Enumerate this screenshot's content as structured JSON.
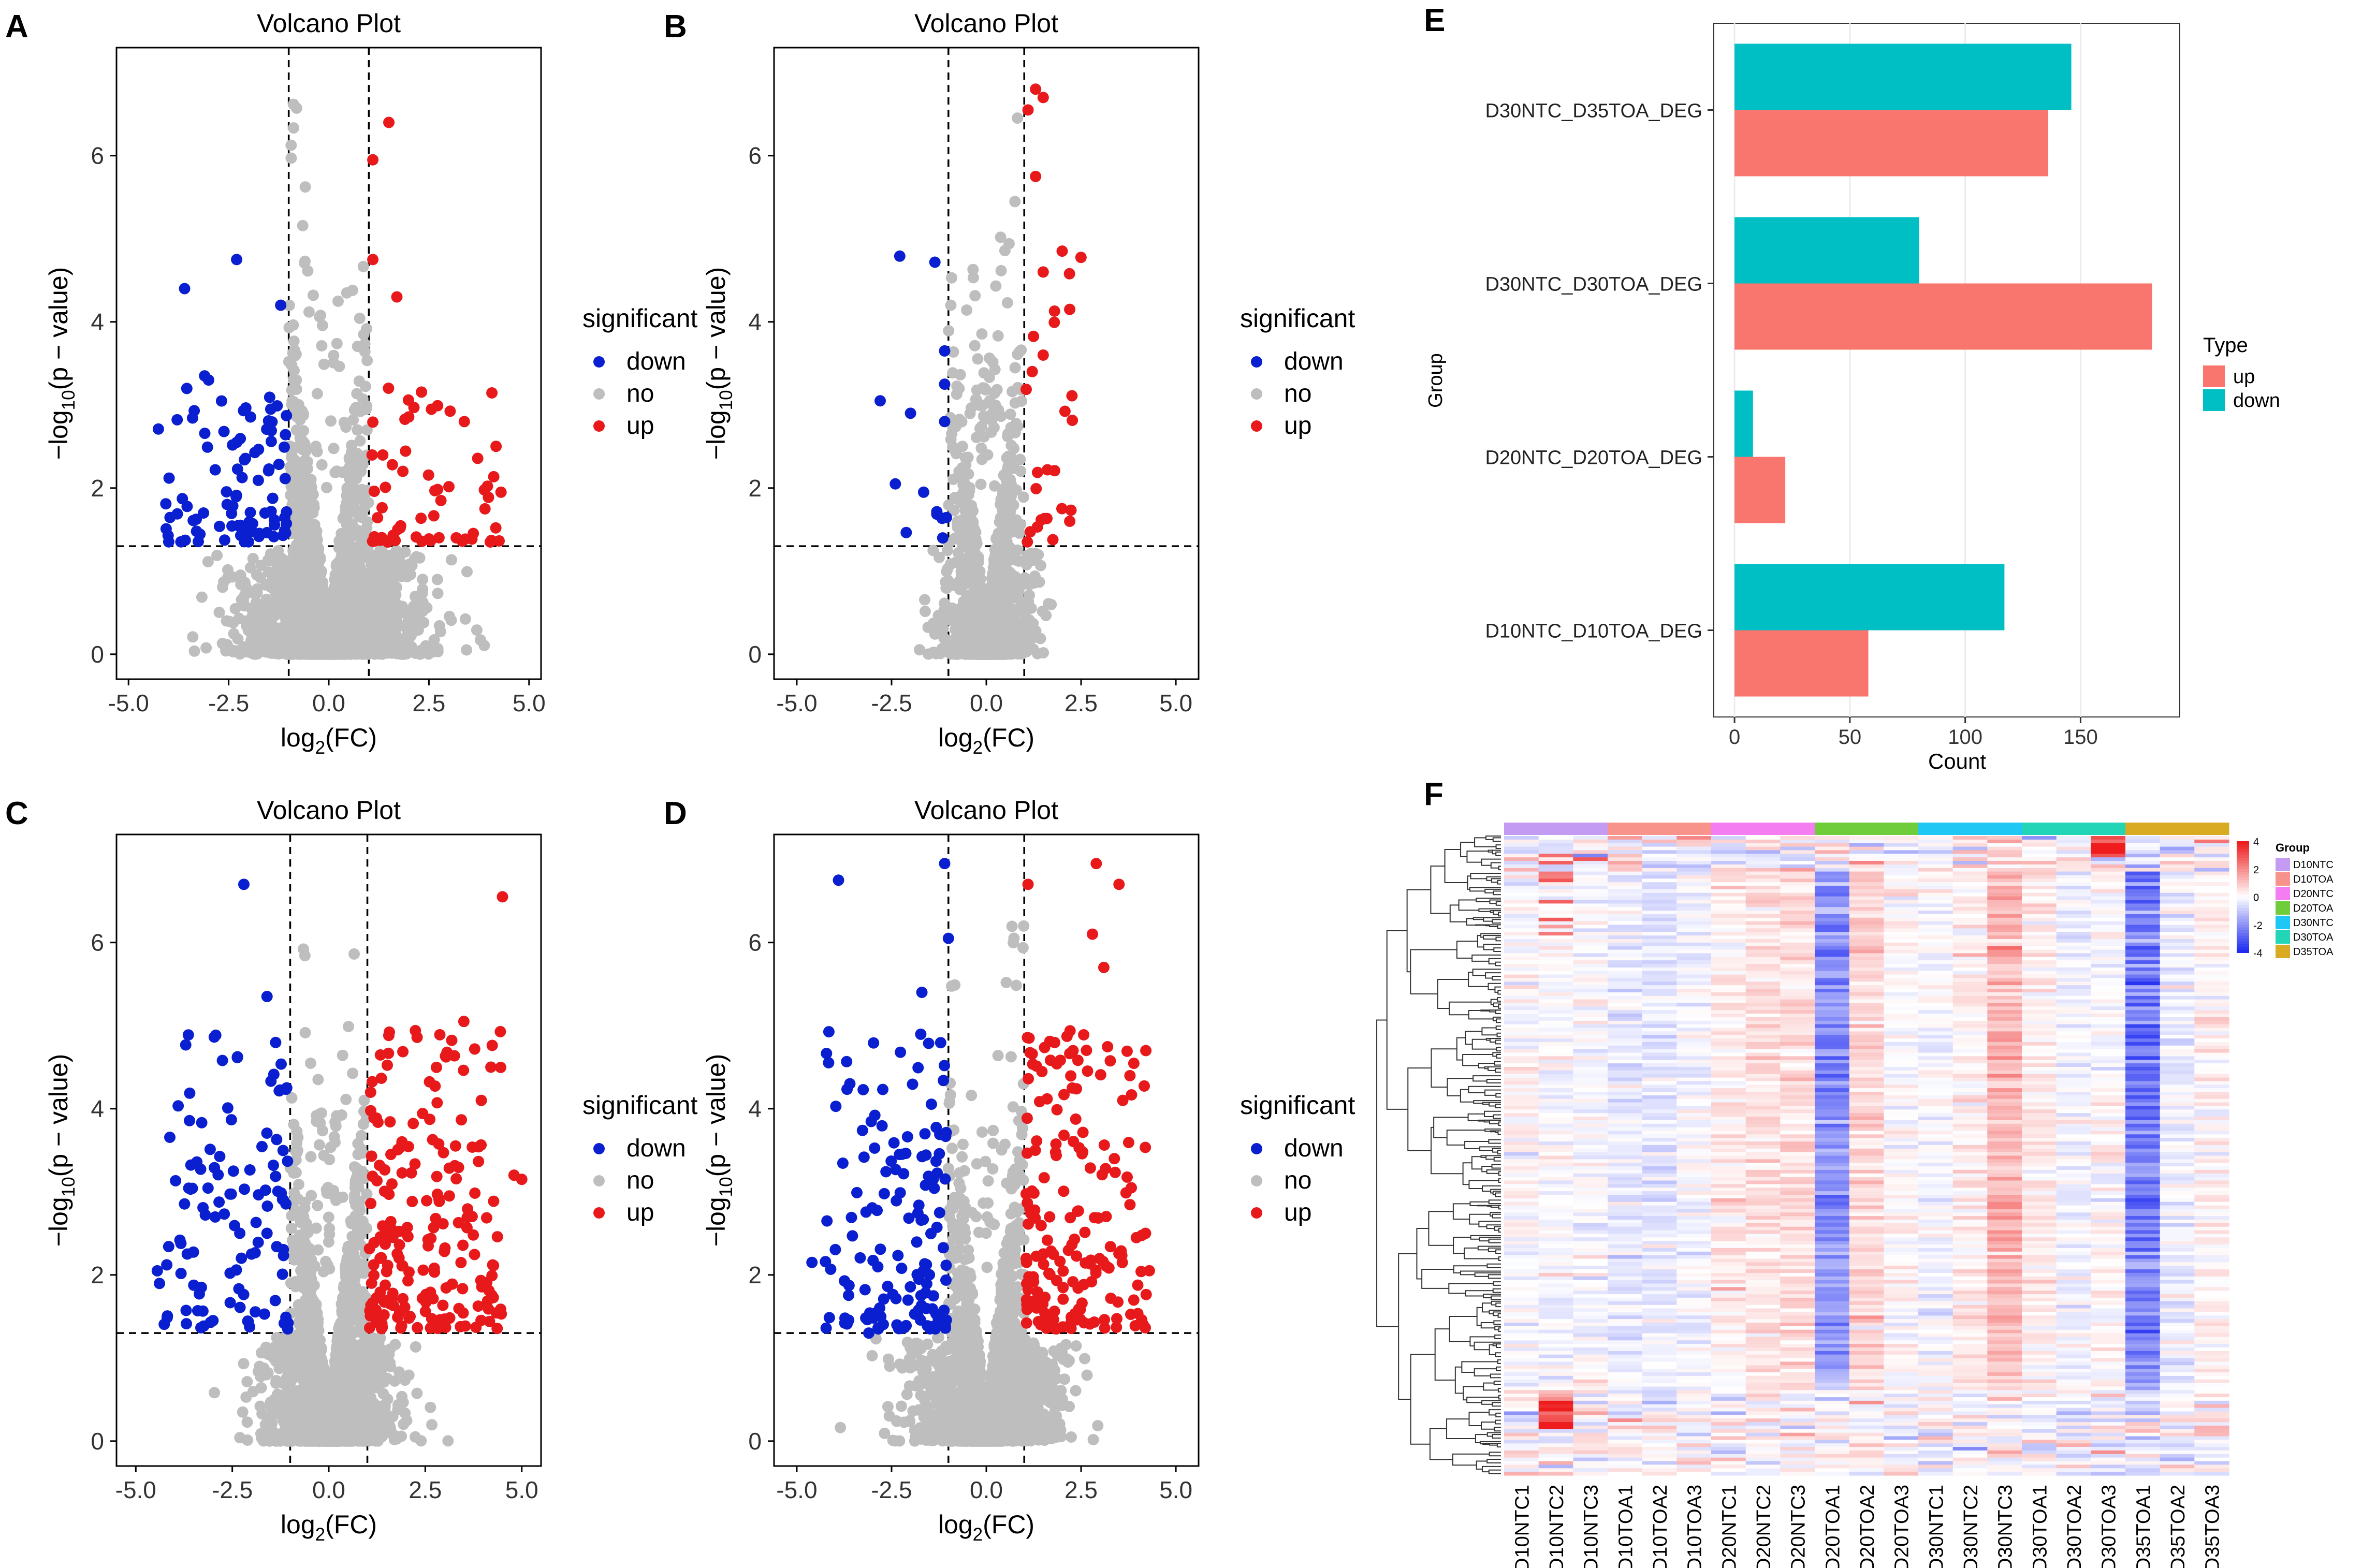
{
  "colors": {
    "down": "#0a1fcf",
    "no": "#bebebe",
    "up": "#e8191b",
    "bar_up": "#f8766d",
    "bar_down": "#00bfc4",
    "heat_low": "#1f2bf0",
    "heat_mid": "#ffffff",
    "heat_high": "#ee1c1c"
  },
  "volcano_common": {
    "title": "Volcano Plot",
    "xlabel_base": "log",
    "xlabel_sub": "2",
    "xlabel_rest": "(FC)",
    "ylabel_pre": "−log",
    "ylabel_sub": "10",
    "ylabel_post": "(p − value)",
    "legend_title": "significant",
    "legend_items": [
      "down",
      "no",
      "up"
    ],
    "ylim": [
      -0.3,
      7.3
    ],
    "yticks": [
      "0",
      "2",
      "4",
      "6"
    ],
    "fc_threshold": 1,
    "p_threshold_line": 1.3
  },
  "chart_data": [
    {
      "panel": "A",
      "type": "scatter",
      "title": "Volcano Plot",
      "xlim": [
        -5.3,
        5.3
      ],
      "xticks": [
        "-5.0",
        "-2.5",
        "0.0",
        "2.5",
        "5.0"
      ],
      "counts": {
        "down": 90,
        "up": 60,
        "no": 2200
      },
      "notable_points": {
        "down": [
          [
            -2.3,
            4.75
          ],
          [
            -3.6,
            4.4
          ],
          [
            -3.1,
            3.35
          ],
          [
            -3.0,
            3.3
          ],
          [
            -1.2,
            4.2
          ]
        ],
        "up": [
          [
            1.5,
            6.4
          ],
          [
            1.1,
            5.95
          ],
          [
            1.1,
            4.75
          ],
          [
            1.7,
            4.3
          ],
          [
            4.3,
            1.95
          ],
          [
            3.9,
            1.75
          ],
          [
            2.8,
            1.85
          ]
        ]
      }
    },
    {
      "panel": "B",
      "type": "scatter",
      "title": "Volcano Plot",
      "xlim": [
        -5.6,
        5.6
      ],
      "xticks": [
        "-5.0",
        "-2.5",
        "0.0",
        "2.5",
        "5.0"
      ],
      "counts": {
        "down": 8,
        "up": 24,
        "no": 1800
      },
      "notable_points": {
        "down": [
          [
            -2.8,
            3.05
          ],
          [
            -2.0,
            2.9
          ],
          [
            -2.4,
            2.05
          ],
          [
            -1.1,
            3.65
          ],
          [
            -1.1,
            3.25
          ],
          [
            -1.1,
            2.8
          ],
          [
            -1.15,
            1.4
          ]
        ],
        "up": [
          [
            1.3,
            6.8
          ],
          [
            1.5,
            6.7
          ],
          [
            1.1,
            6.55
          ],
          [
            1.3,
            5.75
          ],
          [
            1.5,
            4.6
          ],
          [
            2.2,
            4.15
          ],
          [
            1.5,
            3.6
          ],
          [
            2.2,
            1.6
          ]
        ]
      }
    },
    {
      "panel": "C",
      "type": "scatter",
      "title": "Volcano Plot",
      "xlim": [
        -5.5,
        5.5
      ],
      "xticks": [
        "-5.0",
        "-2.5",
        "0.0",
        "2.5",
        "5.0"
      ],
      "counts": {
        "down": 110,
        "up": 200,
        "no": 2600
      },
      "notable_points": {
        "down": [
          [
            -2.2,
            6.7
          ],
          [
            -1.6,
            5.35
          ],
          [
            -3.0,
            1.45
          ],
          [
            -3.3,
            1.85
          ]
        ],
        "up": [
          [
            4.5,
            6.55
          ],
          [
            3.5,
            5.05
          ],
          [
            4.8,
            3.2
          ],
          [
            4.2,
            4.5
          ],
          [
            5.0,
            3.15
          ]
        ]
      }
    },
    {
      "panel": "D",
      "type": "scatter",
      "title": "Volcano Plot",
      "xlim": [
        -5.6,
        5.6
      ],
      "xticks": [
        "-5.0",
        "-2.5",
        "0.0",
        "2.5",
        "5.0"
      ],
      "counts": {
        "down": 140,
        "up": 190,
        "no": 2000
      },
      "notable_points": {
        "down": [
          [
            -3.9,
            6.75
          ],
          [
            -1.1,
            6.95
          ],
          [
            -1.0,
            6.05
          ],
          [
            -1.7,
            5.4
          ],
          [
            -4.6,
            2.15
          ],
          [
            -3.6,
            4.3
          ],
          [
            -3.1,
            1.3
          ]
        ],
        "up": [
          [
            2.9,
            6.95
          ],
          [
            3.5,
            6.7
          ],
          [
            1.1,
            6.7
          ],
          [
            2.8,
            6.1
          ],
          [
            3.1,
            5.7
          ],
          [
            3.6,
            4.1
          ],
          [
            4.3,
            2.05
          ],
          [
            4.2,
            2.5
          ]
        ]
      }
    },
    {
      "panel": "E",
      "type": "bar",
      "orientation": "horizontal",
      "title": "",
      "xlabel": "Count",
      "ylabel": "Group",
      "categories": [
        "D10NTC_D10TOA_DEG",
        "D20NTC_D20TOA_DEG",
        "D30NTC_D30TOA_DEG",
        "D30NTC_D35TOA_DEG"
      ],
      "series": [
        {
          "name": "up",
          "values": [
            58,
            22,
            181,
            136
          ]
        },
        {
          "name": "down",
          "values": [
            117,
            8,
            80,
            146
          ]
        }
      ],
      "xlim": [
        -9,
        193
      ],
      "xticks": [
        "0",
        "50",
        "100",
        "150"
      ],
      "legend_title": "Type",
      "legend": [
        "up",
        "down"
      ]
    },
    {
      "panel": "F",
      "type": "heatmap",
      "columns": [
        "D10NTC1",
        "D10NTC2",
        "D10NTC3",
        "D10TOA1",
        "D10TOA2",
        "D10TOA3",
        "D20NTC1",
        "D20NTC2",
        "D20NTC3",
        "D20TOA1",
        "D20TOA2",
        "D20TOA3",
        "D30NTC1",
        "D30NTC2",
        "D30NTC3",
        "D30TOA1",
        "D30TOA2",
        "D30TOA3",
        "D35TOA1",
        "D35TOA2",
        "D35TOA3"
      ],
      "groups": [
        {
          "name": "D10NTC",
          "color": "#c49bf2"
        },
        {
          "name": "D10TOA",
          "color": "#f7938a"
        },
        {
          "name": "D20NTC",
          "color": "#f57df2"
        },
        {
          "name": "D20TOA",
          "color": "#6fcd3c"
        },
        {
          "name": "D30NTC",
          "color": "#1fc8f4"
        },
        {
          "name": "D30TOA",
          "color": "#22d5b6"
        },
        {
          "name": "D35TOA",
          "color": "#d8ab22"
        }
      ],
      "column_profile": [
        0.05,
        -0.1,
        -0.05,
        -0.35,
        -0.45,
        -0.2,
        0.35,
        0.55,
        0.6,
        -2.1,
        0.7,
        0.05,
        -0.1,
        0.3,
        1.25,
        0.35,
        -0.2,
        0.1,
        -2.4,
        -0.3,
        0.2
      ],
      "legend_title": "Group",
      "scale_ticks": [
        "4",
        "2",
        "0",
        "-2",
        "-4"
      ],
      "scale_range": [
        -4,
        4
      ]
    }
  ],
  "panel_labels": [
    "A",
    "B",
    "C",
    "D",
    "E",
    "F"
  ]
}
